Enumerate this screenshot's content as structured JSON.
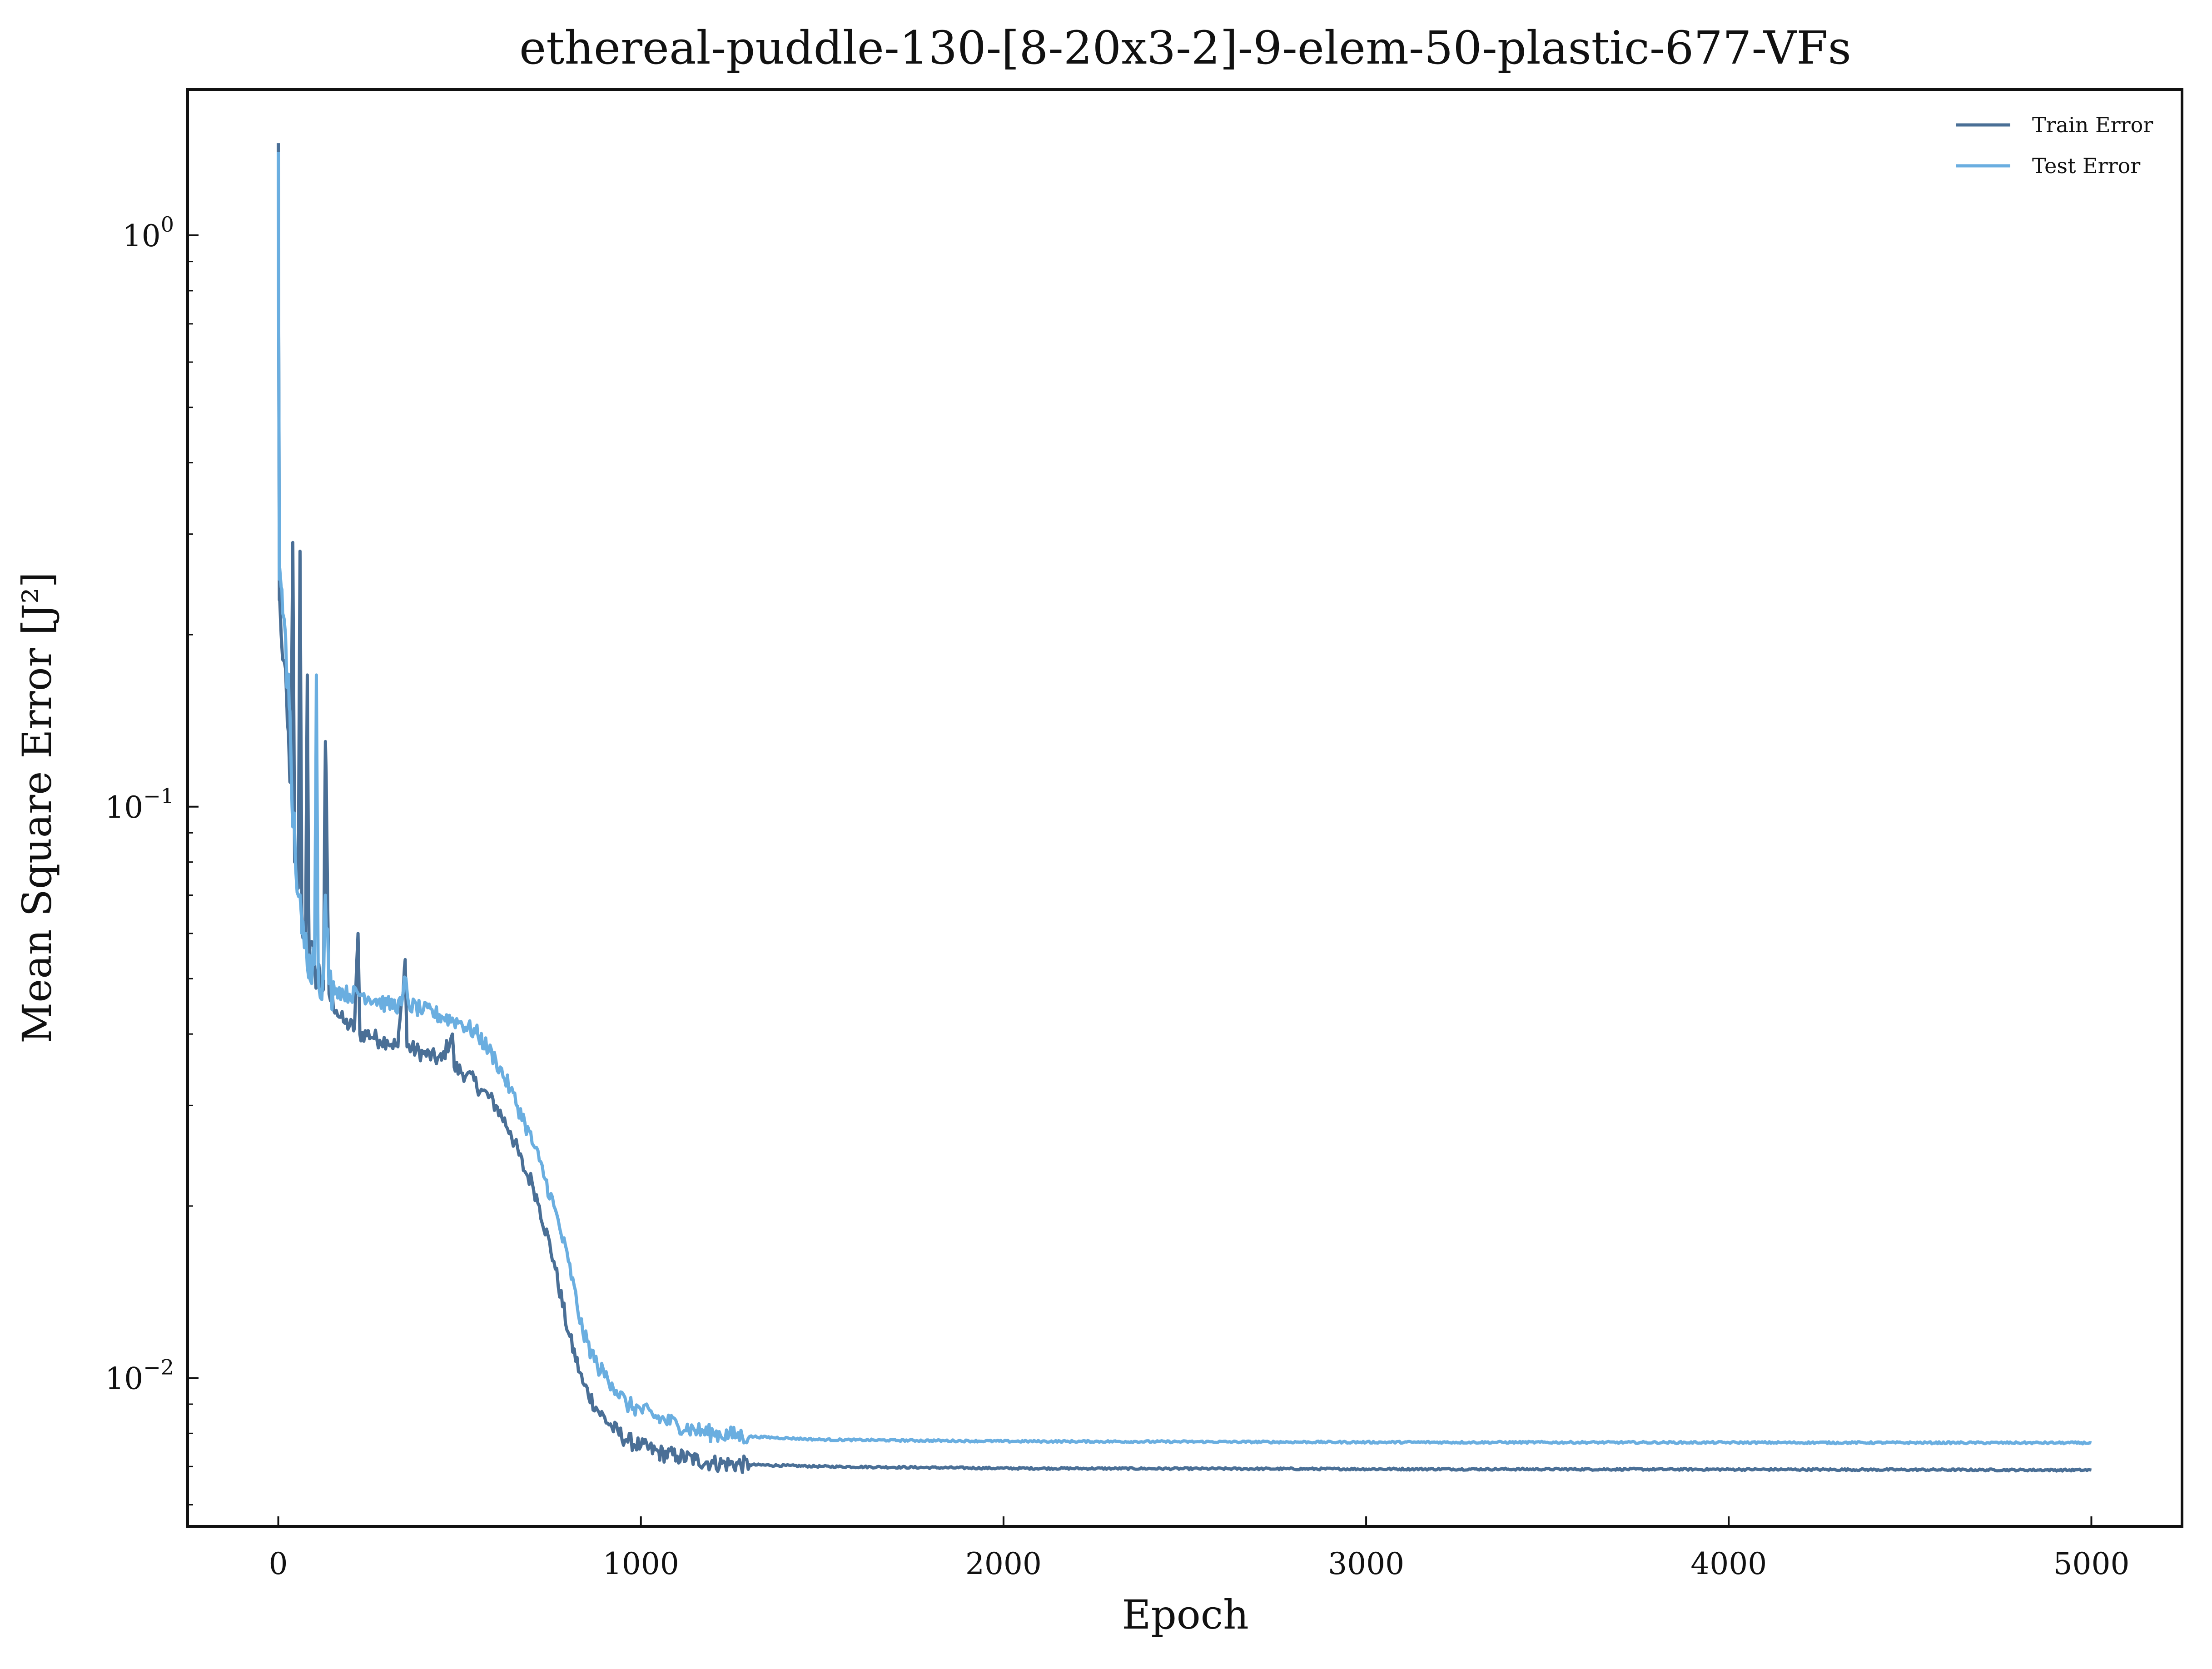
{
  "chart_data": {
    "type": "line",
    "title": "ethereal-puddle-130-[8-20x3-2]-9-elem-50-plastic-677-VFs",
    "xlabel": "Epoch",
    "ylabel": "Mean Square Error [J²]",
    "yscale": "log",
    "xlim": [
      -250,
      5250
    ],
    "ylim": [
      0.0055,
      1.8
    ],
    "xticks": [
      0,
      1000,
      2000,
      3000,
      4000,
      5000
    ],
    "xtick_labels": [
      "0",
      "1000",
      "2000",
      "3000",
      "4000",
      "5000"
    ],
    "yticks": [
      0.01,
      0.1,
      1
    ],
    "ytick_labels": [
      {
        "base": "10",
        "exp": "−2"
      },
      {
        "base": "10",
        "exp": "−1"
      },
      {
        "base": "10",
        "exp": "0"
      }
    ],
    "grid": false,
    "legend_position": "top-right",
    "series": [
      {
        "name": "Train Error",
        "color": "#4a6f96",
        "points": [
          [
            0,
            1.45
          ],
          [
            3,
            0.23
          ],
          [
            8,
            0.2
          ],
          [
            15,
            0.18
          ],
          [
            25,
            0.14
          ],
          [
            35,
            0.11
          ],
          [
            40,
            0.29
          ],
          [
            45,
            0.08
          ],
          [
            55,
            0.072
          ],
          [
            60,
            0.28
          ],
          [
            65,
            0.065
          ],
          [
            75,
            0.058
          ],
          [
            80,
            0.17
          ],
          [
            85,
            0.055
          ],
          [
            100,
            0.053
          ],
          [
            115,
            0.05
          ],
          [
            125,
            0.049
          ],
          [
            130,
            0.13
          ],
          [
            140,
            0.047
          ],
          [
            160,
            0.044
          ],
          [
            180,
            0.042
          ],
          [
            210,
            0.041
          ],
          [
            220,
            0.06
          ],
          [
            225,
            0.04
          ],
          [
            250,
            0.04
          ],
          [
            280,
            0.039
          ],
          [
            300,
            0.039
          ],
          [
            330,
            0.038
          ],
          [
            350,
            0.054
          ],
          [
            355,
            0.038
          ],
          [
            400,
            0.037
          ],
          [
            450,
            0.036
          ],
          [
            480,
            0.04
          ],
          [
            485,
            0.035
          ],
          [
            520,
            0.034
          ],
          [
            560,
            0.032
          ],
          [
            600,
            0.03
          ],
          [
            640,
            0.027
          ],
          [
            680,
            0.023
          ],
          [
            700,
            0.022
          ],
          [
            720,
            0.02
          ],
          [
            760,
            0.016
          ],
          [
            800,
            0.012
          ],
          [
            840,
            0.0098
          ],
          [
            880,
            0.0088
          ],
          [
            920,
            0.0082
          ],
          [
            960,
            0.0078
          ],
          [
            1000,
            0.0076
          ],
          [
            1050,
            0.0074
          ],
          [
            1100,
            0.0073
          ],
          [
            1150,
            0.0072
          ],
          [
            1200,
            0.0071
          ],
          [
            1300,
            0.00705
          ],
          [
            1500,
            0.007
          ],
          [
            2000,
            0.00695
          ],
          [
            3000,
            0.00693
          ],
          [
            4000,
            0.00692
          ],
          [
            5000,
            0.0069
          ]
        ]
      },
      {
        "name": "Test Error",
        "color": "#6aaee0",
        "points": [
          [
            0,
            1.4
          ],
          [
            3,
            0.25
          ],
          [
            10,
            0.24
          ],
          [
            20,
            0.2
          ],
          [
            30,
            0.15
          ],
          [
            38,
            0.1
          ],
          [
            45,
            0.09
          ],
          [
            55,
            0.07
          ],
          [
            65,
            0.06
          ],
          [
            75,
            0.057
          ],
          [
            85,
            0.055
          ],
          [
            100,
            0.053
          ],
          [
            105,
            0.17
          ],
          [
            110,
            0.052
          ],
          [
            125,
            0.05
          ],
          [
            130,
            0.07
          ],
          [
            140,
            0.049
          ],
          [
            160,
            0.048
          ],
          [
            190,
            0.047
          ],
          [
            230,
            0.047
          ],
          [
            270,
            0.046
          ],
          [
            300,
            0.045
          ],
          [
            340,
            0.045
          ],
          [
            350,
            0.05
          ],
          [
            360,
            0.045
          ],
          [
            400,
            0.044
          ],
          [
            450,
            0.043
          ],
          [
            500,
            0.042
          ],
          [
            550,
            0.04
          ],
          [
            600,
            0.036
          ],
          [
            640,
            0.032
          ],
          [
            680,
            0.028
          ],
          [
            720,
            0.024
          ],
          [
            760,
            0.02
          ],
          [
            800,
            0.016
          ],
          [
            840,
            0.012
          ],
          [
            880,
            0.0105
          ],
          [
            920,
            0.0098
          ],
          [
            960,
            0.009
          ],
          [
            1000,
            0.0088
          ],
          [
            1050,
            0.0085
          ],
          [
            1100,
            0.0083
          ],
          [
            1150,
            0.0081
          ],
          [
            1200,
            0.008
          ],
          [
            1300,
            0.0079
          ],
          [
            1500,
            0.0078
          ],
          [
            2000,
            0.00775
          ],
          [
            3000,
            0.00772
          ],
          [
            4000,
            0.00771
          ],
          [
            5000,
            0.0077
          ]
        ]
      }
    ]
  }
}
